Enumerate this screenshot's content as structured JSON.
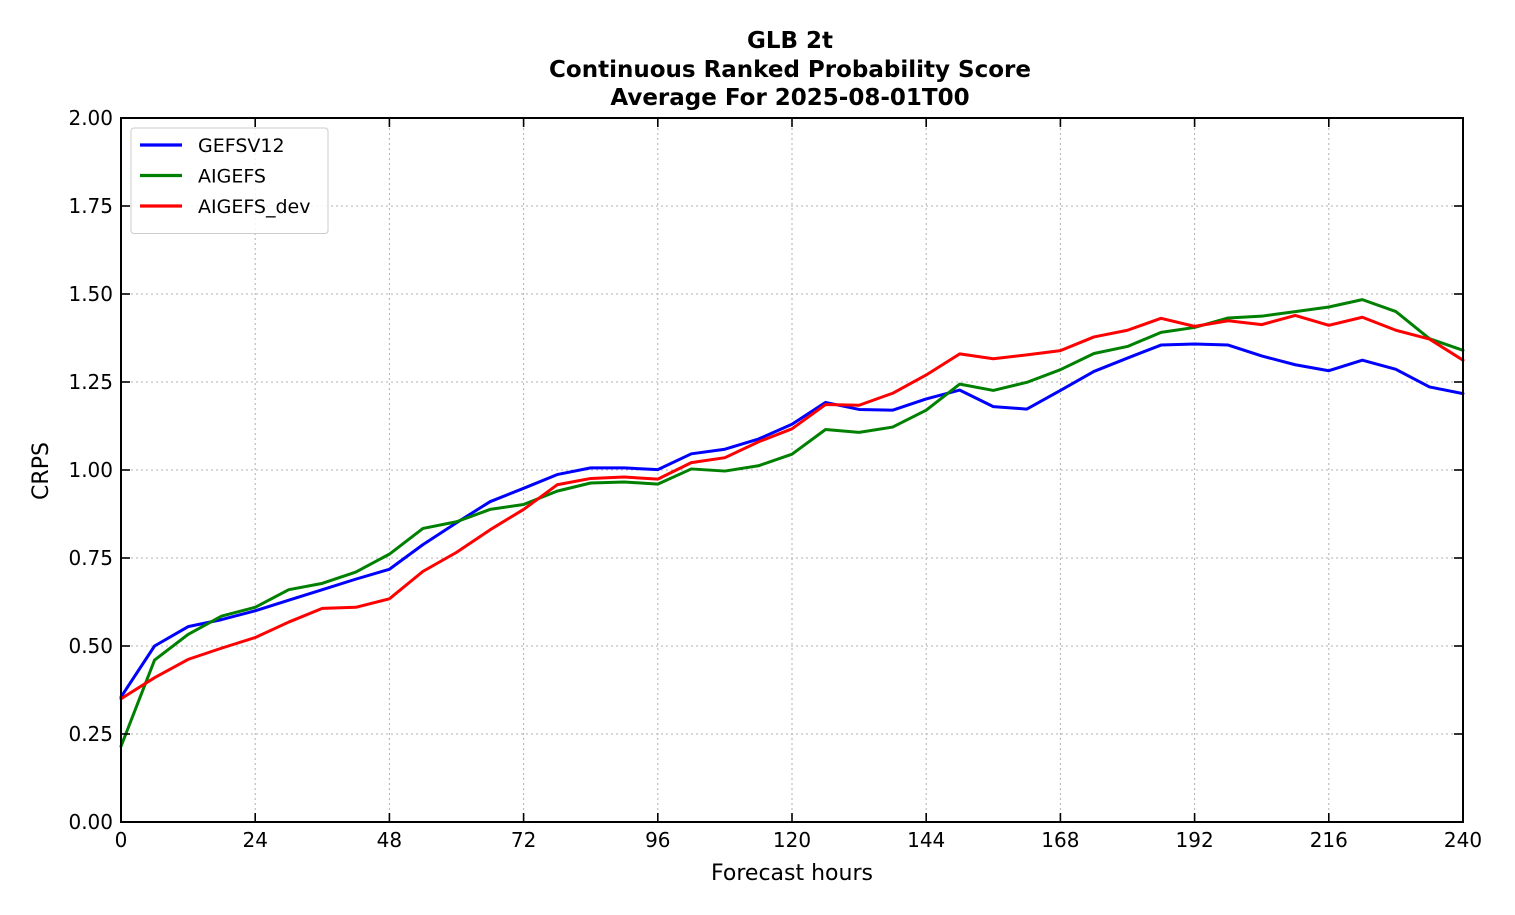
{
  "chart_data": {
    "type": "line",
    "title_lines": [
      "GLB 2t",
      "Continuous Ranked Probability Score",
      "Average For 2025-08-01T00"
    ],
    "xlabel": "Forecast hours",
    "ylabel": "CRPS",
    "xlim": [
      0,
      240
    ],
    "ylim": [
      0,
      2
    ],
    "x_ticks": [
      0,
      24,
      48,
      72,
      96,
      120,
      144,
      168,
      192,
      216,
      240
    ],
    "x_tick_labels": [
      "0",
      "24",
      "48",
      "72",
      "96",
      "120",
      "144",
      "168",
      "192",
      "216",
      "240"
    ],
    "y_ticks": [
      0,
      0.25,
      0.5,
      0.75,
      1.0,
      1.25,
      1.5,
      1.75,
      2.0
    ],
    "y_tick_labels": [
      "0.00",
      "0.25",
      "0.50",
      "0.75",
      "1.00",
      "1.25",
      "1.50",
      "1.75",
      "2.00"
    ],
    "grid": true,
    "legend_position": "top-left",
    "x": [
      0,
      6,
      12,
      18,
      24,
      30,
      36,
      42,
      48,
      54,
      60,
      66,
      72,
      78,
      84,
      90,
      96,
      102,
      108,
      114,
      120,
      126,
      132,
      138,
      144,
      150,
      156,
      162,
      168,
      174,
      180,
      186,
      192,
      198,
      204,
      210,
      216,
      222,
      228,
      234,
      240
    ],
    "series": [
      {
        "name": "GEFSV12",
        "color": "#0000ff",
        "values": [
          0.355,
          0.5,
          0.555,
          0.575,
          0.6,
          0.63,
          0.66,
          0.69,
          0.718,
          0.788,
          0.85,
          0.91,
          0.948,
          0.987,
          1.006,
          1.006,
          1.001,
          1.046,
          1.059,
          1.088,
          1.13,
          1.192,
          1.172,
          1.17,
          1.202,
          1.227,
          1.18,
          1.173,
          1.226,
          1.28,
          1.318,
          1.355,
          1.358,
          1.355,
          1.324,
          1.299,
          1.282,
          1.312,
          1.286,
          1.236,
          1.217
        ]
      },
      {
        "name": "AIGEFS",
        "color": "#008000",
        "values": [
          0.215,
          0.46,
          0.533,
          0.585,
          0.61,
          0.66,
          0.678,
          0.71,
          0.761,
          0.834,
          0.853,
          0.888,
          0.902,
          0.94,
          0.963,
          0.966,
          0.96,
          1.003,
          0.997,
          1.012,
          1.045,
          1.115,
          1.107,
          1.122,
          1.17,
          1.244,
          1.226,
          1.249,
          1.285,
          1.331,
          1.351,
          1.391,
          1.405,
          1.432,
          1.437,
          1.45,
          1.463,
          1.484,
          1.45,
          1.373,
          1.34
        ]
      },
      {
        "name": "AIGEFS_dev",
        "color": "#ff0000",
        "values": [
          0.35,
          0.41,
          0.462,
          0.494,
          0.524,
          0.568,
          0.607,
          0.61,
          0.634,
          0.712,
          0.766,
          0.83,
          0.888,
          0.958,
          0.976,
          0.98,
          0.974,
          1.021,
          1.035,
          1.08,
          1.117,
          1.186,
          1.184,
          1.218,
          1.27,
          1.33,
          1.316,
          1.327,
          1.339,
          1.378,
          1.397,
          1.431,
          1.408,
          1.424,
          1.413,
          1.439,
          1.411,
          1.434,
          1.397,
          1.372,
          1.312
        ]
      }
    ]
  }
}
